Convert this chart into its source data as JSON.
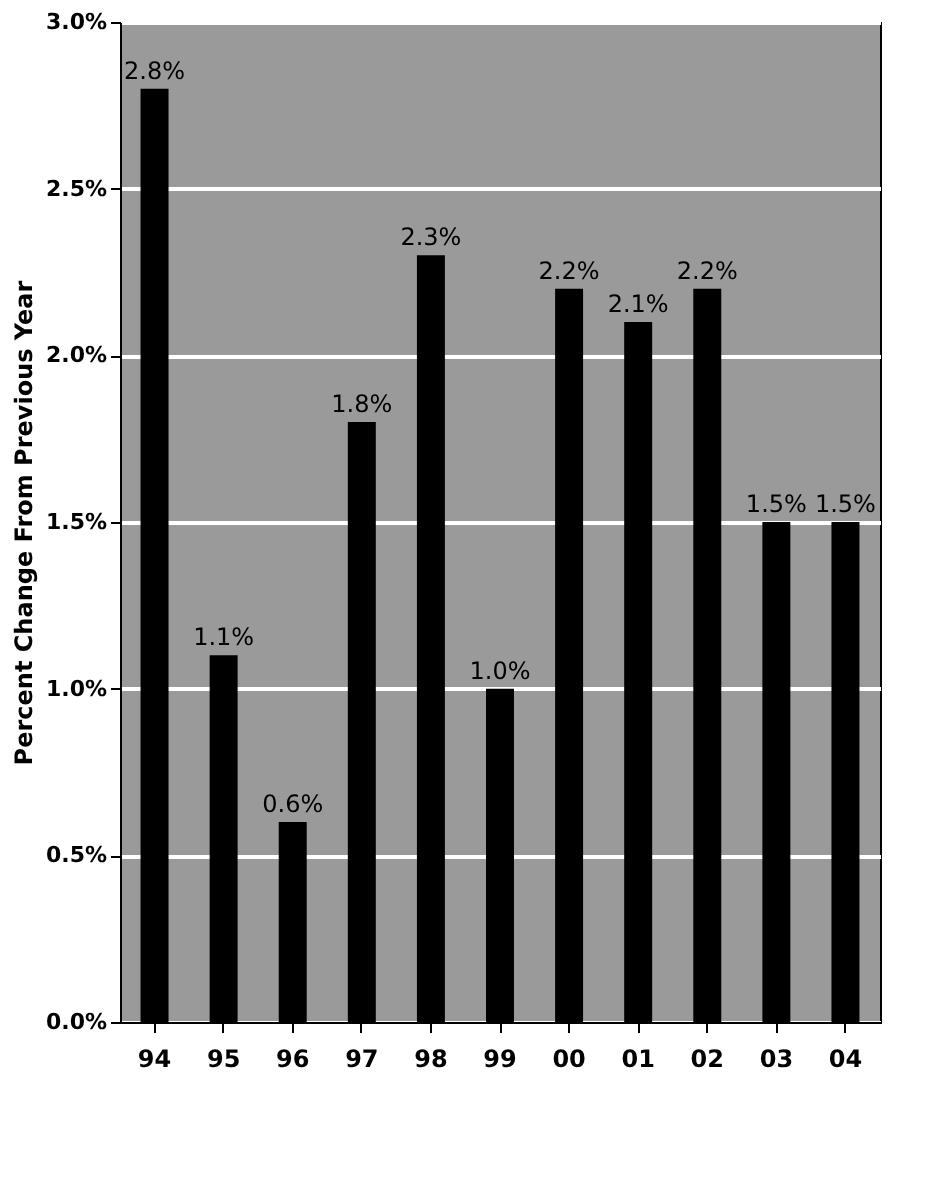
{
  "chart_data": {
    "type": "bar",
    "ylabel": "Percent Change From Previous Year",
    "categories": [
      "94",
      "95",
      "96",
      "97",
      "98",
      "99",
      "00",
      "01",
      "02",
      "03",
      "04"
    ],
    "values": [
      2.8,
      1.1,
      0.6,
      1.8,
      2.3,
      1.0,
      2.2,
      2.1,
      2.2,
      1.5,
      1.5
    ],
    "value_labels": [
      "2.8%",
      "1.1%",
      "0.6%",
      "1.8%",
      "2.3%",
      "1.0%",
      "2.2%",
      "2.1%",
      "2.2%",
      "1.5%",
      "1.5%"
    ],
    "color": "#000000",
    "ylim": [
      0,
      3.0
    ],
    "yticks": [
      {
        "value": 0,
        "label": "0.0%"
      },
      {
        "value": 0.5,
        "label": "0.5%"
      },
      {
        "value": 1.0,
        "label": "1.0%"
      },
      {
        "value": 1.5,
        "label": "1.5%"
      },
      {
        "value": 2.0,
        "label": "2.0%"
      },
      {
        "value": 2.5,
        "label": "2.5%"
      },
      {
        "value": 3.0,
        "label": "3.0%"
      }
    ],
    "grid": "y"
  }
}
